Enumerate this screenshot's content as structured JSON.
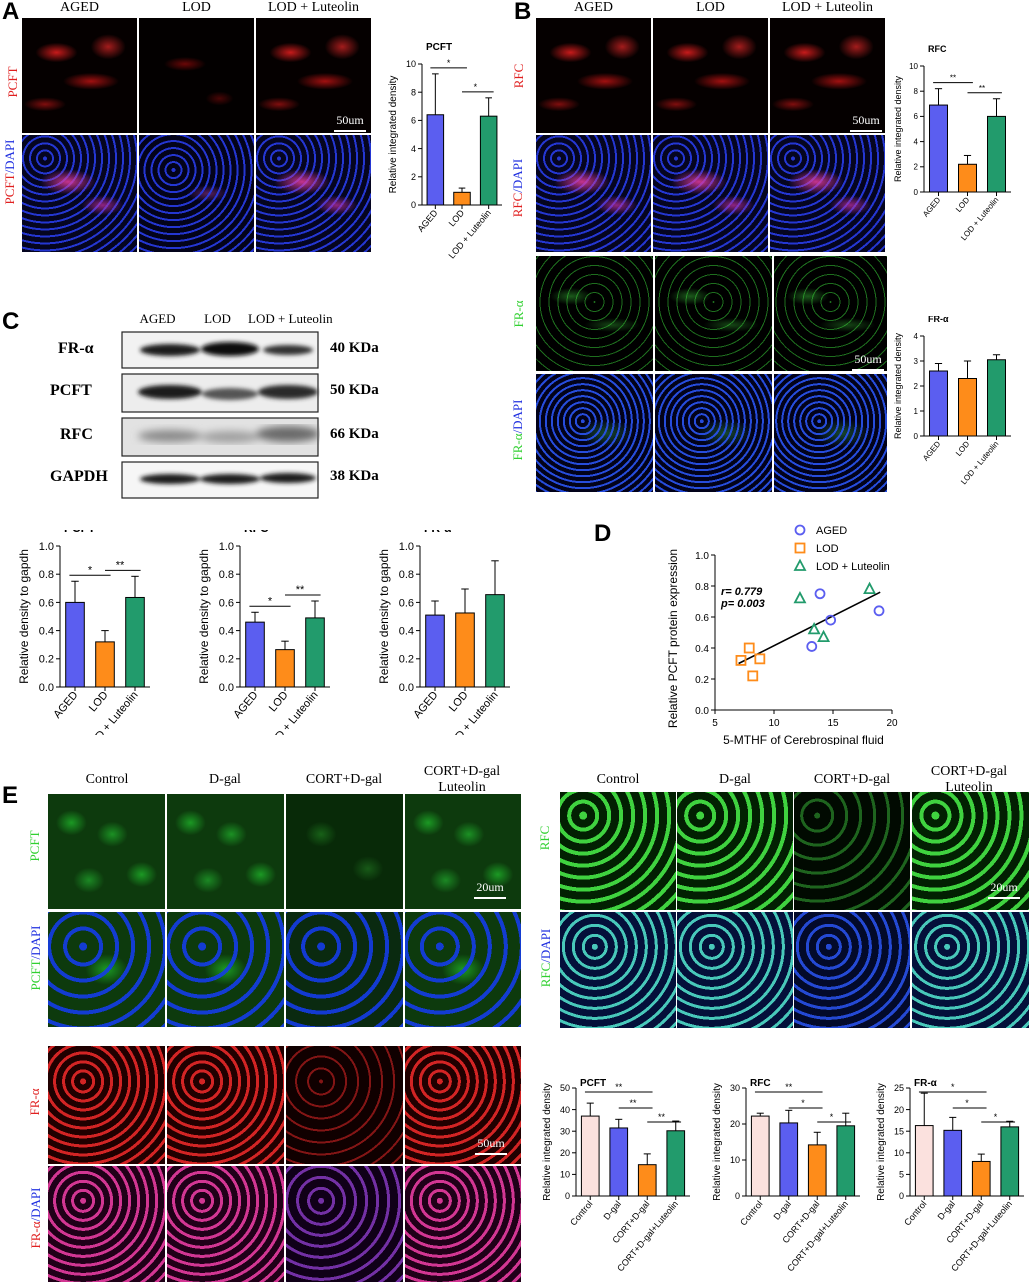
{
  "panels": {
    "A": "A",
    "B": "B",
    "C": "C",
    "D": "D",
    "E": "E"
  },
  "groups3": [
    "AGED",
    "LOD",
    "LOD + Luteolin"
  ],
  "groups4": [
    "Control",
    "D-gal",
    "CORT+D-gal",
    "CORT+D-gal\nLuteolin"
  ],
  "groups4_line1": [
    "Control",
    "D-gal",
    "CORT+D-gal",
    "CORT+D-gal"
  ],
  "groups4_line2": [
    "",
    "",
    "",
    "Luteolin"
  ],
  "panelA": {
    "row_labels": {
      "r1": "PCFT",
      "r2a": "PCFT",
      "r2b": "/DAPI"
    },
    "scale": "50um"
  },
  "panelB": {
    "row_labels": {
      "r1": "RFC",
      "r2a": "RFC",
      "r2b": "/DAPI",
      "r3": "FR-α",
      "r4a": "FR-α",
      "r4b": "/DAPI"
    },
    "scale": "50um"
  },
  "panelC": {
    "bands": [
      "FR-α",
      "PCFT",
      "RFC",
      "GAPDH"
    ],
    "kda": [
      "40 KDa",
      "50 KDa",
      "66 KDa",
      "38 KDa"
    ]
  },
  "panelE": {
    "pcft_labels": {
      "a": "PCFT",
      "b": "PCFT",
      "c": "/DAPI"
    },
    "rfc_labels": {
      "a": "RFC",
      "b": "RFC",
      "c": "/DAPI"
    },
    "fra_labels": {
      "a": "FR-α",
      "b": "FR-α",
      "c": "/DAPI"
    },
    "scale_20": "20um",
    "scale_50": "50um"
  },
  "colors": {
    "blue": "#5b5ef0",
    "orange": "#fe8c1a",
    "green": "#229b6c",
    "pink": "#fbe1de",
    "red_fluor": "#d81818",
    "green_fluor": "#2fd02f"
  },
  "chart_data": [
    {
      "id": "A-PCFT",
      "type": "bar",
      "title": "PCFT",
      "ylabel": "Relative integrated density",
      "categories": [
        "AGED",
        "LOD",
        "LOD + Luteolin"
      ],
      "values": [
        6.4,
        0.9,
        6.3
      ],
      "errors": [
        2.9,
        0.3,
        1.3
      ],
      "ylim": [
        0,
        10
      ],
      "yticks": [
        0,
        2,
        4,
        6,
        8,
        10
      ],
      "sig": [
        {
          "from": 0,
          "to": 1,
          "label": "*"
        },
        {
          "from": 1,
          "to": 2,
          "label": "*"
        }
      ]
    },
    {
      "id": "B-RFC",
      "type": "bar",
      "title": "RFC",
      "ylabel": "Relative integrated density",
      "categories": [
        "AGED",
        "LOD",
        "LOD + Luteolin"
      ],
      "values": [
        6.9,
        2.2,
        6.0
      ],
      "errors": [
        1.3,
        0.7,
        1.4
      ],
      "ylim": [
        0,
        10
      ],
      "yticks": [
        0,
        2,
        4,
        6,
        8,
        10
      ],
      "sig": [
        {
          "from": 0,
          "to": 1,
          "label": "**"
        },
        {
          "from": 1,
          "to": 2,
          "label": "**"
        }
      ]
    },
    {
      "id": "B-FRa",
      "type": "bar",
      "title": "FR-α",
      "ylabel": "Relative integrated density",
      "categories": [
        "AGED",
        "LOD",
        "LOD + Luteolin"
      ],
      "values": [
        2.6,
        2.3,
        3.05
      ],
      "errors": [
        0.3,
        0.7,
        0.2
      ],
      "ylim": [
        0,
        4
      ],
      "yticks": [
        0,
        1,
        2,
        3,
        4
      ],
      "sig": []
    },
    {
      "id": "C-PCFT",
      "type": "bar",
      "title": "PCFT",
      "ylabel": "Relative  density to gapdh",
      "categories": [
        "AGED",
        "LOD",
        "LOD + Luteolin"
      ],
      "values": [
        0.6,
        0.32,
        0.635
      ],
      "errors": [
        0.15,
        0.08,
        0.15
      ],
      "ylim": [
        0,
        1.0
      ],
      "yticks": [
        0.0,
        0.2,
        0.4,
        0.6,
        0.8,
        1.0
      ],
      "sig": [
        {
          "from": 0,
          "to": 1,
          "label": "*"
        },
        {
          "from": 1,
          "to": 2,
          "label": "**"
        }
      ]
    },
    {
      "id": "C-RFC",
      "type": "bar",
      "title": "RFC",
      "ylabel": "Relative  density to gapdh",
      "categories": [
        "AGED",
        "LOD",
        "LOD + Luteolin"
      ],
      "values": [
        0.46,
        0.265,
        0.49
      ],
      "errors": [
        0.07,
        0.06,
        0.12
      ],
      "ylim": [
        0,
        1.0
      ],
      "yticks": [
        0.0,
        0.2,
        0.4,
        0.6,
        0.8,
        1.0
      ],
      "sig": [
        {
          "from": 0,
          "to": 1,
          "label": "*"
        },
        {
          "from": 1,
          "to": 2,
          "label": "**"
        }
      ]
    },
    {
      "id": "C-FRa",
      "type": "bar",
      "title": "FR-α",
      "ylabel": "Relative  density to gapdh",
      "categories": [
        "AGED",
        "LOD",
        "LOD + Luteolin"
      ],
      "values": [
        0.51,
        0.525,
        0.655
      ],
      "errors": [
        0.1,
        0.17,
        0.24
      ],
      "ylim": [
        0,
        1.0
      ],
      "yticks": [
        0.0,
        0.2,
        0.4,
        0.6,
        0.8,
        1.0
      ],
      "sig": []
    },
    {
      "id": "D-scatter",
      "type": "scatter",
      "xlabel": "5-MTHF of Cerebrospinal fluid",
      "ylabel": "Relative  PCFT protein expression",
      "xlim": [
        5,
        20
      ],
      "ylim": [
        0.0,
        1.0
      ],
      "xticks": [
        5,
        10,
        15,
        20
      ],
      "yticks": [
        0.0,
        0.2,
        0.4,
        0.6,
        0.8,
        1.0
      ],
      "annotation_r": "r= 0.779",
      "annotation_p": "p= 0.003",
      "series": [
        {
          "name": "AGED",
          "marker": "circle",
          "points": [
            [
              13.2,
              0.41
            ],
            [
              13.9,
              0.75
            ],
            [
              14.8,
              0.58
            ],
            [
              18.9,
              0.64
            ]
          ]
        },
        {
          "name": "LOD",
          "marker": "square",
          "points": [
            [
              7.2,
              0.32
            ],
            [
              7.9,
              0.4
            ],
            [
              8.2,
              0.22
            ],
            [
              8.8,
              0.33
            ]
          ]
        },
        {
          "name": "LOD + Luteolin",
          "marker": "triangle",
          "points": [
            [
              12.2,
              0.72
            ],
            [
              13.4,
              0.52
            ],
            [
              14.2,
              0.47
            ],
            [
              18.1,
              0.78
            ]
          ]
        }
      ],
      "fit": [
        [
          7.0,
          0.3
        ],
        [
          19.0,
          0.76
        ]
      ]
    },
    {
      "id": "E-PCFT",
      "type": "bar",
      "title": "PCFT",
      "ylabel": "Relative integrated density",
      "categories": [
        "Control",
        "D-gal",
        "CORT+D-gal",
        "CORT+D-gal+Luteolin"
      ],
      "values": [
        37,
        31.5,
        14.5,
        30.2
      ],
      "errors": [
        6,
        4,
        5,
        4.5
      ],
      "ylim": [
        0,
        50
      ],
      "yticks": [
        0,
        10,
        20,
        30,
        40,
        50
      ],
      "sig": [
        {
          "from": 0,
          "to": 2,
          "label": "**"
        },
        {
          "from": 1,
          "to": 2,
          "label": "**"
        },
        {
          "from": 2,
          "to": 3,
          "label": "**"
        }
      ]
    },
    {
      "id": "E-RFC",
      "type": "bar",
      "title": "RFC",
      "ylabel": "Relative integrated density",
      "categories": [
        "Control",
        "D-gal",
        "CORT+D-gal",
        "CORT+D-gal+Luteolin"
      ],
      "values": [
        22.2,
        20.3,
        14.2,
        19.5
      ],
      "errors": [
        0.8,
        3.5,
        3.5,
        3.5
      ],
      "ylim": [
        0,
        30
      ],
      "yticks": [
        0,
        10,
        20,
        30
      ],
      "sig": [
        {
          "from": 0,
          "to": 2,
          "label": "**"
        },
        {
          "from": 1,
          "to": 2,
          "label": "*"
        },
        {
          "from": 2,
          "to": 3,
          "label": "*"
        }
      ]
    },
    {
      "id": "E-FRa",
      "type": "bar",
      "title": "FR-α",
      "ylabel": "Relative integrated density",
      "categories": [
        "Control",
        "D-gal",
        "CORT+D-gal",
        "CORT+D-gal+Luteolin"
      ],
      "values": [
        16.3,
        15.2,
        8.0,
        16.0
      ],
      "errors": [
        7.5,
        3,
        1.7,
        1.3
      ],
      "ylim": [
        0,
        25
      ],
      "yticks": [
        0,
        5,
        10,
        15,
        20,
        25
      ],
      "sig": [
        {
          "from": 0,
          "to": 2,
          "label": "*"
        },
        {
          "from": 1,
          "to": 2,
          "label": "*"
        },
        {
          "from": 2,
          "to": 3,
          "label": "*"
        }
      ]
    }
  ]
}
